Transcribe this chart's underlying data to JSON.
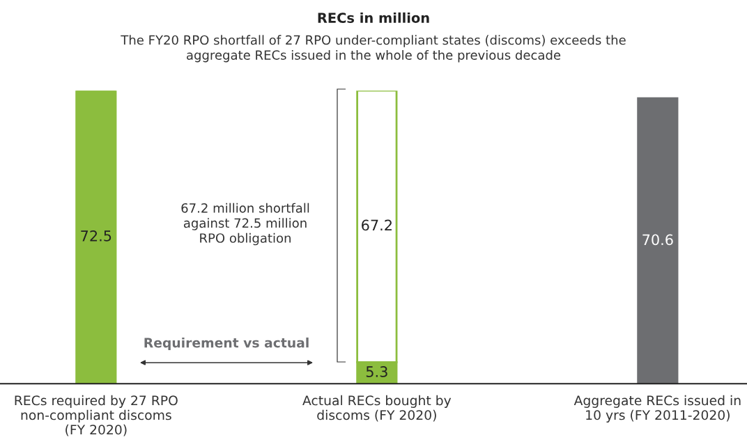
{
  "chart_data": {
    "type": "bar",
    "title": "RECs in million",
    "subtitle": "The FY20 RPO shortfall of 27 RPO under-compliant states (discoms) exceeds the\naggregate RECs issued in the whole of the previous decade",
    "categories": [
      "RECs required by 27 RPO\nnon-compliant discoms\n(FY 2020)",
      "Actual RECs bought by\ndiscoms (FY 2020)",
      "Aggregate RECs issued in\n10 yrs (FY 2011-2020)"
    ],
    "stacked": true,
    "series": [
      {
        "colors": [
          "#8cbd3e",
          "#8cbd3e",
          "#6d6e71"
        ],
        "values": [
          72.5,
          5.3,
          70.6
        ]
      },
      {
        "color": "#ffffff",
        "values": [
          null,
          67.2,
          null
        ]
      }
    ],
    "data_labels": true,
    "annotations": [
      "67.2 million shortfall\nagainst 72.5 million\nRPO obligation",
      "Requirement vs actual"
    ],
    "grid": false,
    "legend": false
  }
}
